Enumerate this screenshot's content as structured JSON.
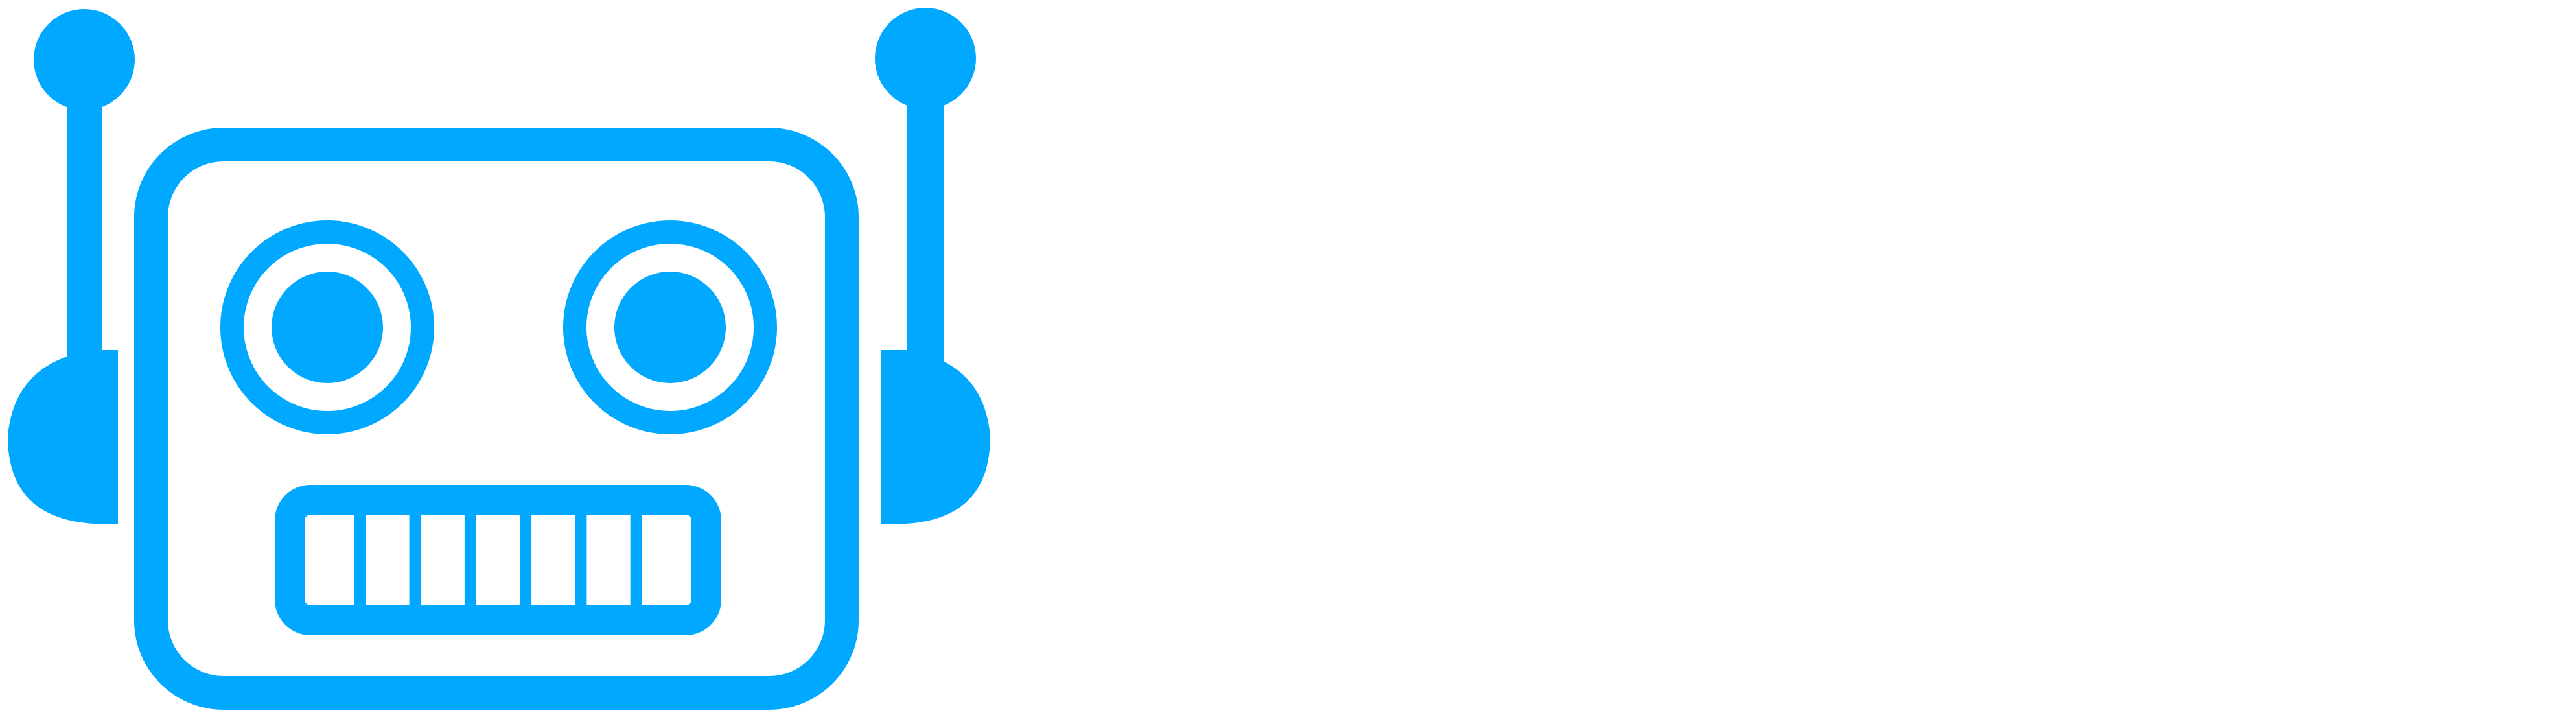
{
  "logo": {
    "name": "robot-head-logo",
    "icon": "robot-icon",
    "colors": {
      "primary": "#00A8FF",
      "background": "#FFFFFF"
    },
    "teeth_count": 7
  }
}
